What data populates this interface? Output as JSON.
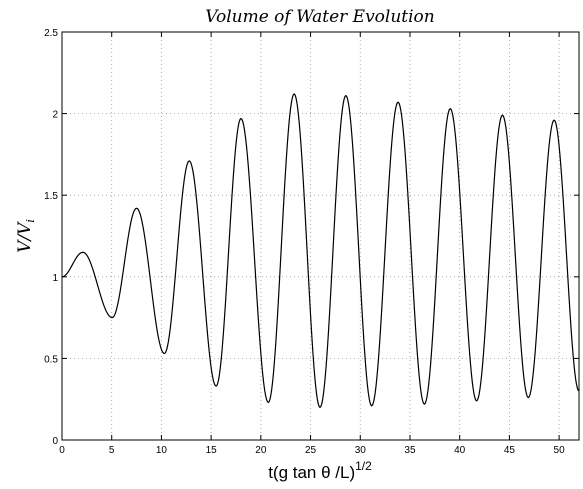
{
  "chart_data": {
    "type": "line",
    "title": "Volume of Water Evolution",
    "xlabel": "t(g tan θ /L)",
    "xlabel_superscript": "1/2",
    "ylabel": "V/V",
    "ylabel_subscript": "i",
    "xlim": [
      0,
      52
    ],
    "ylim": [
      0,
      2.5
    ],
    "xticks": [
      0,
      5,
      10,
      15,
      20,
      25,
      30,
      35,
      40,
      45,
      50
    ],
    "yticks": [
      0,
      0.5,
      1,
      1.5,
      2,
      2.5
    ],
    "grid": true,
    "series": [
      {
        "x": [
          0,
          2.1,
          5.05,
          7.5,
          10.3,
          12.8,
          15.5,
          18.0,
          20.75,
          23.35,
          25.95,
          28.55,
          31.15,
          33.8,
          36.45,
          39.05,
          41.7,
          44.3,
          46.9,
          49.5,
          52
        ],
        "values": [
          1.0,
          1.15,
          0.75,
          1.42,
          0.53,
          1.71,
          0.33,
          1.97,
          0.23,
          2.12,
          0.2,
          2.11,
          0.21,
          2.07,
          0.22,
          2.03,
          0.24,
          1.99,
          0.26,
          1.96,
          0.3
        ]
      }
    ]
  }
}
